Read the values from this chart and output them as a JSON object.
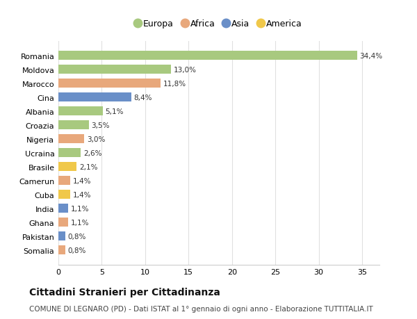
{
  "countries": [
    "Romania",
    "Moldova",
    "Marocco",
    "Cina",
    "Albania",
    "Croazia",
    "Nigeria",
    "Ucraina",
    "Brasile",
    "Camerun",
    "Cuba",
    "India",
    "Ghana",
    "Pakistan",
    "Somalia"
  ],
  "values": [
    34.4,
    13.0,
    11.8,
    8.4,
    5.1,
    3.5,
    3.0,
    2.6,
    2.1,
    1.4,
    1.4,
    1.1,
    1.1,
    0.8,
    0.8
  ],
  "labels": [
    "34,4%",
    "13,0%",
    "11,8%",
    "8,4%",
    "5,1%",
    "3,5%",
    "3,0%",
    "2,6%",
    "2,1%",
    "1,4%",
    "1,4%",
    "1,1%",
    "1,1%",
    "0,8%",
    "0,8%"
  ],
  "continents": [
    "Europa",
    "Europa",
    "Africa",
    "Asia",
    "Europa",
    "Europa",
    "Africa",
    "Europa",
    "America",
    "Africa",
    "America",
    "Asia",
    "Africa",
    "Asia",
    "Africa"
  ],
  "colors": {
    "Europa": "#a8c97f",
    "Africa": "#e8a87c",
    "Asia": "#6a8fc8",
    "America": "#f0c84a"
  },
  "legend_order": [
    "Europa",
    "Africa",
    "Asia",
    "America"
  ],
  "bg_color": "#ffffff",
  "plot_bg_color": "#ffffff",
  "grid_color": "#e0e0e0",
  "title": "Cittadini Stranieri per Cittadinanza",
  "subtitle": "COMUNE DI LEGNARO (PD) - Dati ISTAT al 1° gennaio di ogni anno - Elaborazione TUTTITALIA.IT",
  "xlim": [
    0,
    37
  ],
  "xticks": [
    0,
    5,
    10,
    15,
    20,
    25,
    30,
    35
  ],
  "bar_height": 0.65,
  "label_fontsize": 7.5,
  "tick_fontsize": 8.0,
  "title_fontsize": 10,
  "subtitle_fontsize": 7.5,
  "legend_fontsize": 9
}
